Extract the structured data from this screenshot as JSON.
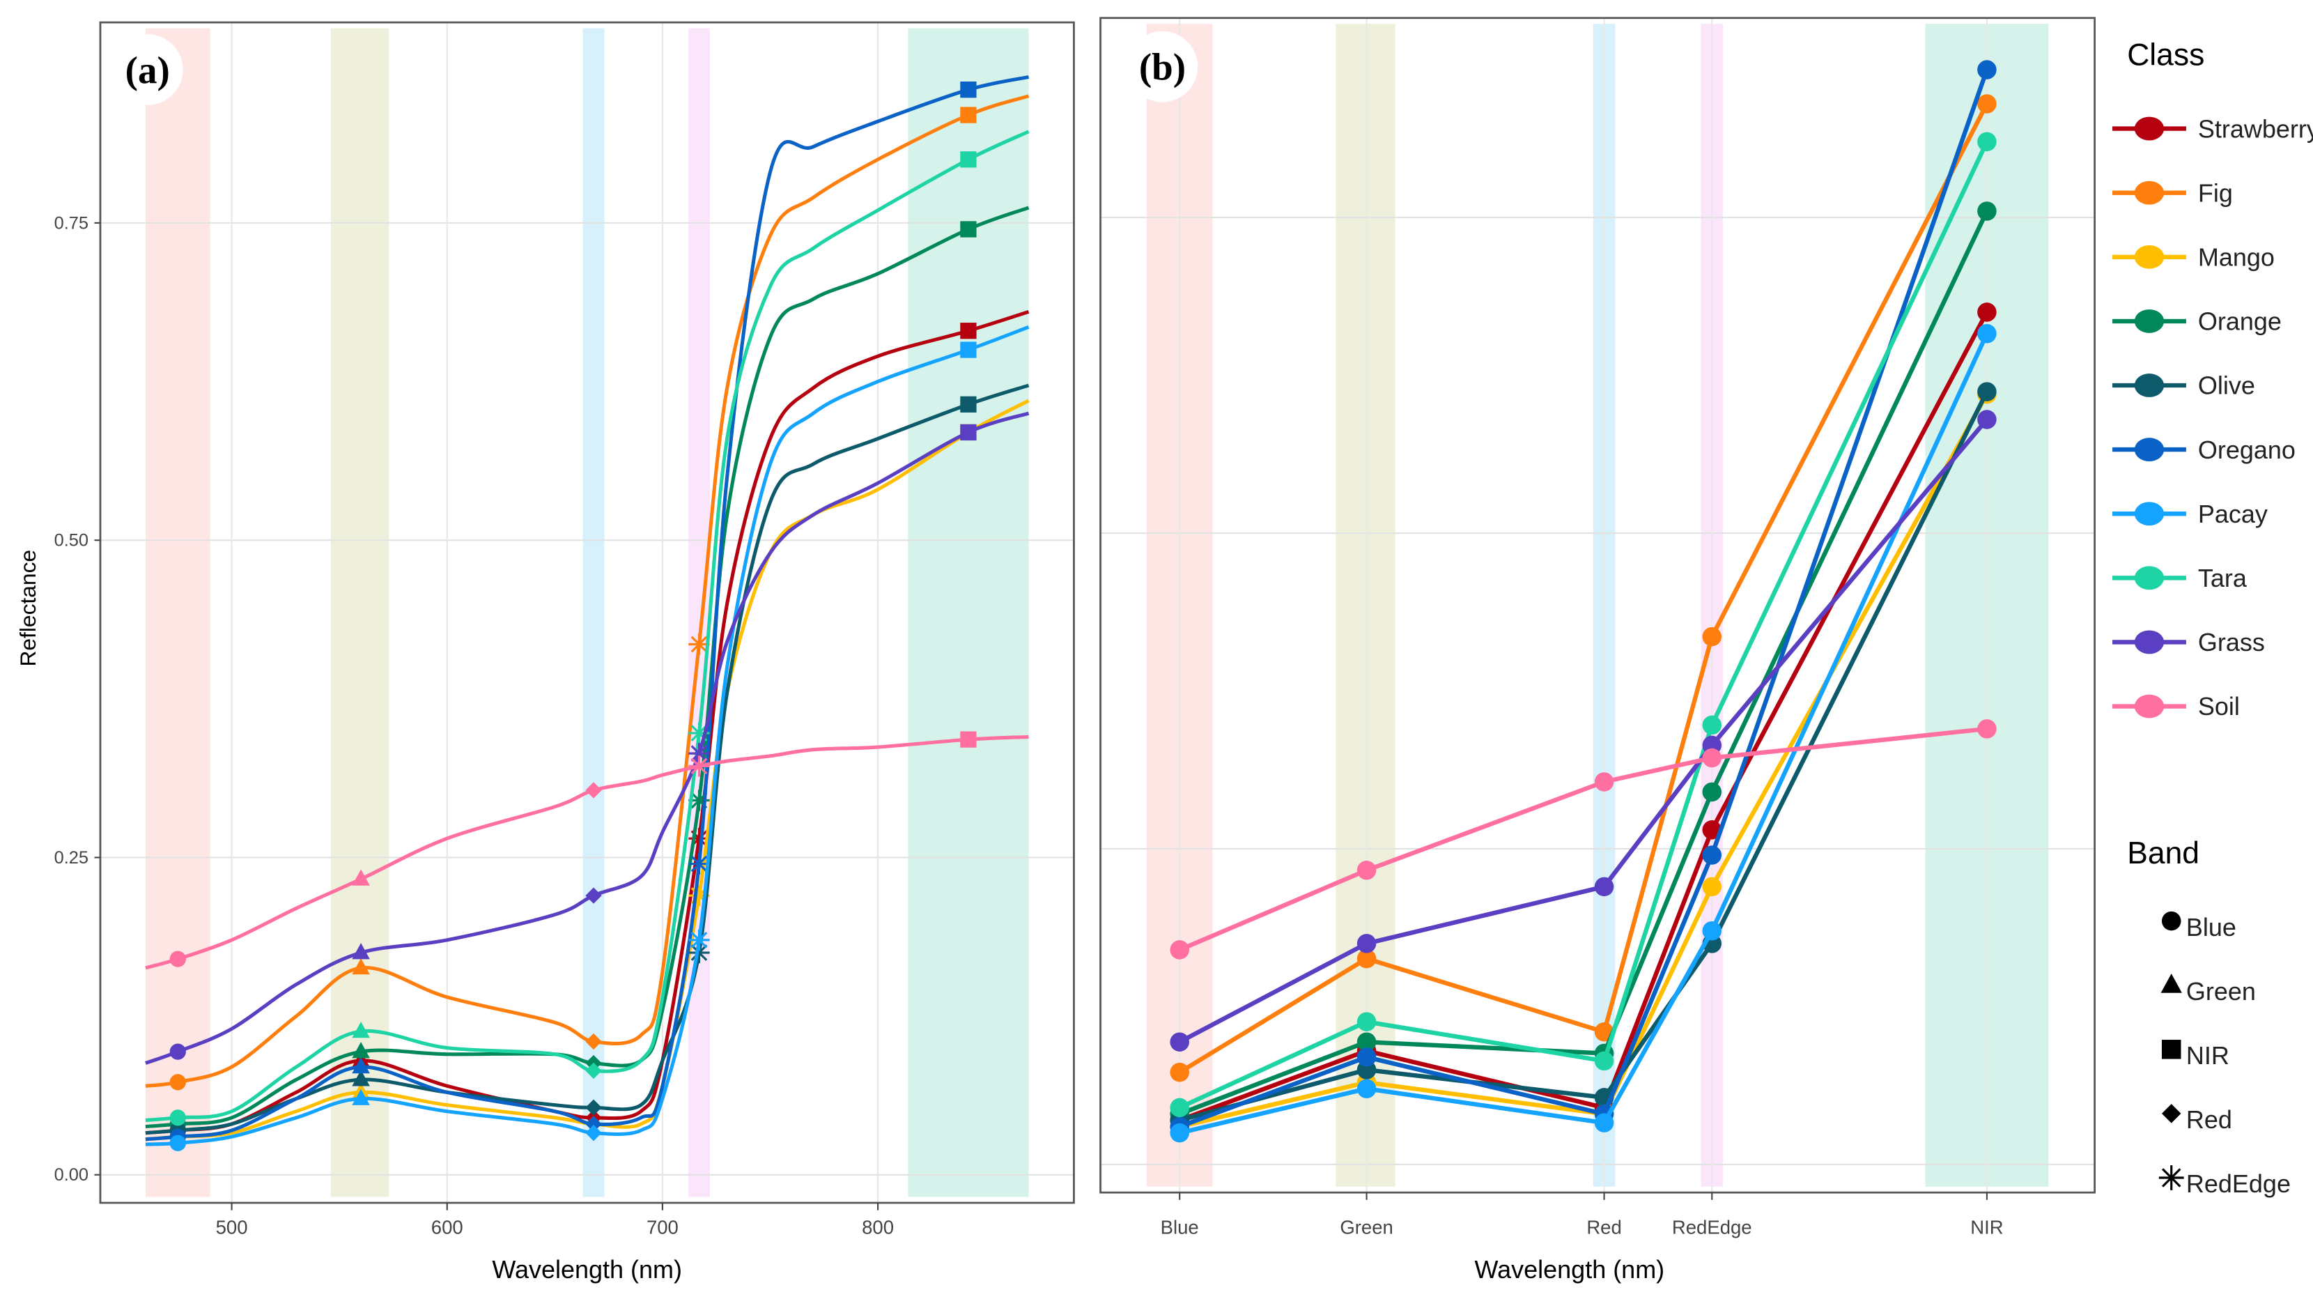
{
  "chart_data": [
    {
      "type": "line",
      "panel_label": "(a)",
      "xlabel": "Wavelength (nm)",
      "ylabel": "Reflectance",
      "xlim": [
        439,
        891
      ],
      "ylim": [
        -0.0,
        0.908
      ],
      "xticks": [
        500,
        600,
        700,
        800
      ],
      "xtick_labels": [
        "500",
        "600",
        "700",
        "800"
      ],
      "yticks": [
        0,
        0.25,
        0.5,
        0.75
      ],
      "ytick_labels": [
        "0.00",
        "0.25",
        "0.50",
        "0.75"
      ],
      "grid": true,
      "x": [
        460,
        475,
        500,
        530,
        560,
        600,
        650,
        668,
        690,
        700,
        717,
        730,
        750,
        770,
        800,
        842,
        870
      ],
      "series": [
        {
          "name": "Strawberry",
          "values": [
            0.033,
            0.035,
            0.04,
            0.065,
            0.09,
            0.07,
            0.05,
            0.045,
            0.05,
            0.09,
            0.265,
            0.45,
            0.58,
            0.62,
            0.645,
            0.665,
            0.68
          ]
        },
        {
          "name": "Fig",
          "values": [
            0.07,
            0.073,
            0.085,
            0.125,
            0.163,
            0.14,
            0.12,
            0.105,
            0.11,
            0.16,
            0.418,
            0.62,
            0.74,
            0.77,
            0.8,
            0.835,
            0.85
          ]
        },
        {
          "name": "Mango",
          "values": [
            0.028,
            0.03,
            0.033,
            0.05,
            0.065,
            0.055,
            0.045,
            0.04,
            0.04,
            0.07,
            0.22,
            0.38,
            0.49,
            0.52,
            0.54,
            0.585,
            0.61
          ]
        },
        {
          "name": "Orange",
          "values": [
            0.038,
            0.04,
            0.045,
            0.075,
            0.097,
            0.095,
            0.095,
            0.088,
            0.09,
            0.13,
            0.295,
            0.52,
            0.66,
            0.69,
            0.71,
            0.745,
            0.762
          ]
        },
        {
          "name": "Olive",
          "values": [
            0.033,
            0.035,
            0.04,
            0.06,
            0.075,
            0.065,
            0.055,
            0.053,
            0.055,
            0.09,
            0.175,
            0.38,
            0.53,
            0.56,
            0.58,
            0.607,
            0.622
          ]
        },
        {
          "name": "Oregano",
          "values": [
            0.028,
            0.03,
            0.035,
            0.06,
            0.085,
            0.065,
            0.05,
            0.04,
            0.045,
            0.07,
            0.245,
            0.55,
            0.79,
            0.81,
            0.83,
            0.855,
            0.865
          ]
        },
        {
          "name": "Pacay",
          "values": [
            0.024,
            0.025,
            0.03,
            0.045,
            0.06,
            0.05,
            0.04,
            0.033,
            0.035,
            0.06,
            0.185,
            0.4,
            0.56,
            0.6,
            0.625,
            0.65,
            0.668
          ]
        },
        {
          "name": "Tara",
          "values": [
            0.043,
            0.045,
            0.05,
            0.085,
            0.113,
            0.1,
            0.095,
            0.082,
            0.09,
            0.14,
            0.348,
            0.58,
            0.7,
            0.73,
            0.76,
            0.8,
            0.822
          ]
        },
        {
          "name": "Grass",
          "values": [
            0.088,
            0.097,
            0.115,
            0.15,
            0.175,
            0.185,
            0.205,
            0.22,
            0.235,
            0.27,
            0.332,
            0.42,
            0.49,
            0.52,
            0.545,
            0.585,
            0.6
          ]
        },
        {
          "name": "Soil",
          "values": [
            0.163,
            0.17,
            0.185,
            0.21,
            0.233,
            0.265,
            0.29,
            0.303,
            0.31,
            0.315,
            0.322,
            0.326,
            0.33,
            0.335,
            0.337,
            0.343,
            0.345
          ]
        }
      ]
    },
    {
      "type": "line",
      "panel_label": "(b)",
      "xlabel": "Wavelength (nm)",
      "categories": [
        "Blue",
        "Green",
        "Red",
        "RedEdge",
        "NIR"
      ],
      "category_wavelengths": [
        475,
        560,
        668,
        717,
        842
      ],
      "ylim": [
        0,
        0.908
      ],
      "grid": true,
      "series": [
        {
          "name": "Strawberry",
          "values": [
            0.035,
            0.09,
            0.045,
            0.265,
            0.675
          ]
        },
        {
          "name": "Fig",
          "values": [
            0.073,
            0.163,
            0.105,
            0.418,
            0.84
          ]
        },
        {
          "name": "Mango",
          "values": [
            0.03,
            0.065,
            0.04,
            0.22,
            0.61
          ]
        },
        {
          "name": "Orange",
          "values": [
            0.04,
            0.097,
            0.088,
            0.295,
            0.755
          ]
        },
        {
          "name": "Olive",
          "values": [
            0.035,
            0.075,
            0.053,
            0.175,
            0.612
          ]
        },
        {
          "name": "Oregano",
          "values": [
            0.03,
            0.085,
            0.04,
            0.245,
            0.867
          ]
        },
        {
          "name": "Pacay",
          "values": [
            0.025,
            0.06,
            0.033,
            0.185,
            0.658
          ]
        },
        {
          "name": "Tara",
          "values": [
            0.045,
            0.113,
            0.082,
            0.348,
            0.81
          ]
        },
        {
          "name": "Grass",
          "values": [
            0.097,
            0.175,
            0.22,
            0.332,
            0.59
          ]
        },
        {
          "name": "Soil",
          "values": [
            0.17,
            0.233,
            0.303,
            0.322,
            0.345
          ]
        }
      ]
    }
  ],
  "bands": [
    {
      "name": "Blue",
      "range": [
        460,
        490
      ],
      "color": "#fde6e4",
      "shape": "circle"
    },
    {
      "name": "Green",
      "range": [
        546,
        573
      ],
      "color": "#eef0dc",
      "shape": "triangle"
    },
    {
      "name": "NIR",
      "range": [
        814,
        870
      ],
      "color": "#d5f3ea",
      "shape": "square"
    },
    {
      "name": "Red",
      "range": [
        663,
        673
      ],
      "color": "#d6f1fb",
      "shape": "diamond"
    },
    {
      "name": "RedEdge",
      "range": [
        712,
        722
      ],
      "color": "#fbe5fb",
      "shape": "asterisk"
    }
  ],
  "band_marker_wavelengths": {
    "Blue": 475,
    "Green": 560,
    "Red": 668,
    "RedEdge": 717,
    "NIR": 842
  },
  "legend": {
    "class_title": "Class",
    "classes": [
      {
        "name": "Strawberry",
        "color": "#b5000f"
      },
      {
        "name": "Fig",
        "color": "#ff7f0e"
      },
      {
        "name": "Mango",
        "color": "#ffbf00"
      },
      {
        "name": "Orange",
        "color": "#00875a"
      },
      {
        "name": "Olive",
        "color": "#0d5a6a"
      },
      {
        "name": "Oregano",
        "color": "#0a62c6"
      },
      {
        "name": "Pacay",
        "color": "#14a4ff"
      },
      {
        "name": "Tara",
        "color": "#1ed3a4"
      },
      {
        "name": "Grass",
        "color": "#5a3fc2"
      },
      {
        "name": "Soil",
        "color": "#ff6f9f"
      }
    ],
    "band_title": "Band",
    "bands": [
      "Blue",
      "Green",
      "NIR",
      "Red",
      "RedEdge"
    ]
  }
}
